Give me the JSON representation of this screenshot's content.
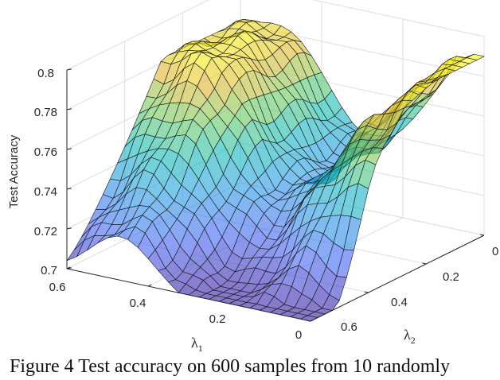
{
  "chart_data": {
    "type": "surface",
    "title": "",
    "zlabel": "Test Accuracy",
    "x_axis": {
      "symbol": "λ",
      "subscript": "1",
      "range": [
        0,
        0.6
      ],
      "ticks": [
        "0.6",
        "0.4",
        "0.2",
        "0"
      ]
    },
    "y_axis": {
      "symbol": "λ",
      "subscript": "2",
      "range": [
        0,
        0.6
      ],
      "ticks": [
        "0",
        "0.2",
        "0.4",
        "0.6"
      ]
    },
    "z_axis": {
      "range": [
        0.7,
        0.8
      ],
      "ticks": [
        "0.7",
        "0.72",
        "0.74",
        "0.76",
        "0.78",
        "0.8"
      ]
    },
    "grid": true,
    "colormap": "parula",
    "caption": "Figure 4 Test accuracy on 600 samples from 10 randomly",
    "surface_summary": {
      "min_value": 0.7,
      "max_value": 0.785,
      "corner_values": {
        "lambda1_0.6_lambda2_0": 0.7,
        "lambda1_0_lambda2_0": 0.785,
        "lambda1_0_lambda2_0.6": 0.7,
        "lambda1_0.6_lambda2_0.6": 0.76
      }
    }
  }
}
